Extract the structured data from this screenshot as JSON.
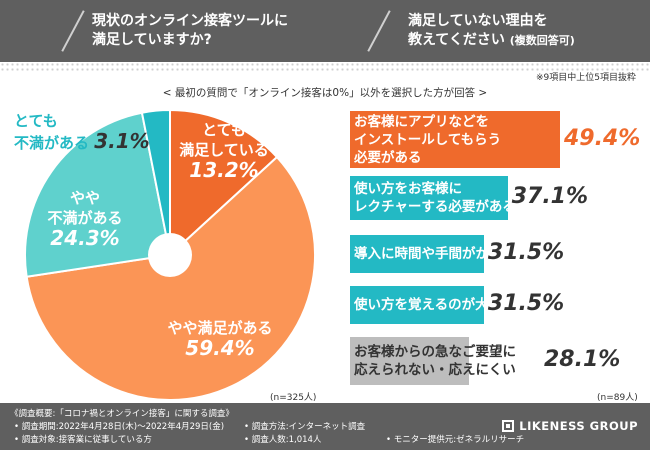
{
  "header": {
    "q1_line1": "現状のオンライン接客ツールに",
    "q1_line2": "満足していますか?",
    "q2_line1": "満足していない理由を",
    "q2_line2": "教えてください",
    "q2_note": "(複数回答可)"
  },
  "note": "※9項目中上位5項目抜粋",
  "subtitle": "< 最初の質問で「オンライン接客は0%」以外を選択した方が回答 >",
  "colors": {
    "dark_orange": "#ef6a2c",
    "light_orange": "#fb9556",
    "light_teal": "#5fd1cd",
    "dark_teal": "#23b9c4",
    "gray": "#bdbdbd",
    "header_bg": "#5f5f5f"
  },
  "chart_data": [
    {
      "type": "pie",
      "n": "(n=325人)",
      "slices": [
        {
          "label_line1": "とても",
          "label_line2": "満足している",
          "value": 13.2,
          "display": "13.2%"
        },
        {
          "label_line1": "やや満足がある",
          "label_line2": "",
          "value": 59.4,
          "display": "59.4%"
        },
        {
          "label_line1": "やや",
          "label_line2": "不満がある",
          "value": 24.3,
          "display": "24.3%"
        },
        {
          "label_line1": "とても",
          "label_line2": "不満がある",
          "value": 3.1,
          "display": "3.1%"
        }
      ]
    },
    {
      "type": "bar",
      "n": "(n=89人)",
      "categories": [
        "お客様にアプリなどを|インストールしてもらう|必要がある",
        "使い方をお客様に|レクチャーする必要がある",
        "導入に時間や手間がかかる",
        "使い方を覚えるのが大変",
        "お客様からの急なご要望に|応えられない・応えにくい"
      ],
      "values": [
        49.4,
        37.1,
        31.5,
        31.5,
        28.1
      ],
      "display": [
        "49.4%",
        "37.1%",
        "31.5%",
        "31.5%",
        "28.1%"
      ],
      "xlim": [
        0,
        49.4
      ]
    }
  ],
  "footer": {
    "title": "《調査概要:「コロナ禍とオンライン接客」に関する調査》",
    "period": "• 調査期間:2022年4月28日(木)〜2022年4月29日(金)",
    "target": "• 調査対象:接客業に従事している方",
    "method": "• 調査方法:インターネット調査",
    "count": "• 調査人数:1,014人",
    "provider": "• モニター提供元:ゼネラルリサーチ",
    "logo": "LIKENESS GROUP"
  }
}
